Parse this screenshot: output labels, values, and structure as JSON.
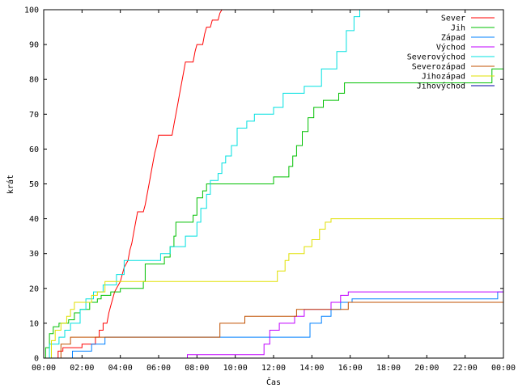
{
  "chart_data": {
    "type": "line",
    "xlabel": "Čas",
    "ylabel": "krát",
    "xlim": [
      0,
      24
    ],
    "ylim": [
      0,
      100
    ],
    "xticks": [
      {
        "v": 0,
        "label": "00:00"
      },
      {
        "v": 2,
        "label": "02:00"
      },
      {
        "v": 4,
        "label": "04:00"
      },
      {
        "v": 6,
        "label": "06:00"
      },
      {
        "v": 8,
        "label": "08:00"
      },
      {
        "v": 10,
        "label": "10:00"
      },
      {
        "v": 12,
        "label": "12:00"
      },
      {
        "v": 14,
        "label": "14:00"
      },
      {
        "v": 16,
        "label": "16:00"
      },
      {
        "v": 18,
        "label": "18:00"
      },
      {
        "v": 20,
        "label": "20:00"
      },
      {
        "v": 22,
        "label": "22:00"
      },
      {
        "v": 24,
        "label": "00:00"
      }
    ],
    "yticks": [
      {
        "v": 0,
        "label": "0"
      },
      {
        "v": 10,
        "label": "10"
      },
      {
        "v": 20,
        "label": "20"
      },
      {
        "v": 30,
        "label": "30"
      },
      {
        "v": 40,
        "label": "40"
      },
      {
        "v": 50,
        "label": "50"
      },
      {
        "v": 60,
        "label": "60"
      },
      {
        "v": 70,
        "label": "70"
      },
      {
        "v": 80,
        "label": "80"
      },
      {
        "v": 90,
        "label": "90"
      },
      {
        "v": 100,
        "label": "100"
      }
    ],
    "grid": false,
    "legend_position": "top-right",
    "series": [
      {
        "name": "Sever",
        "color": "#ff0000",
        "points": [
          [
            0,
            0
          ],
          [
            0.75,
            0
          ],
          [
            0.75,
            2
          ],
          [
            1.0,
            2
          ],
          [
            1.0,
            3
          ],
          [
            2.0,
            3
          ],
          [
            2.0,
            4
          ],
          [
            2.7,
            4
          ],
          [
            2.7,
            6
          ],
          [
            2.9,
            6
          ],
          [
            2.9,
            8
          ],
          [
            3.1,
            8
          ],
          [
            3.1,
            10
          ],
          [
            3.3,
            10
          ],
          [
            3.4,
            13
          ],
          [
            3.5,
            15
          ],
          [
            3.6,
            17
          ],
          [
            3.7,
            19
          ],
          [
            3.8,
            20
          ],
          [
            3.9,
            21
          ],
          [
            4.0,
            22
          ],
          [
            4.1,
            24
          ],
          [
            4.2,
            26
          ],
          [
            4.4,
            28
          ],
          [
            4.5,
            31
          ],
          [
            4.6,
            33
          ],
          [
            4.7,
            36
          ],
          [
            4.8,
            39
          ],
          [
            4.9,
            42
          ],
          [
            5.2,
            42
          ],
          [
            5.3,
            44
          ],
          [
            5.4,
            47
          ],
          [
            5.5,
            50
          ],
          [
            5.6,
            53
          ],
          [
            5.7,
            56
          ],
          [
            5.8,
            59
          ],
          [
            5.9,
            61
          ],
          [
            6.0,
            64
          ],
          [
            6.7,
            64
          ],
          [
            6.8,
            67
          ],
          [
            6.9,
            70
          ],
          [
            7.0,
            73
          ],
          [
            7.1,
            76
          ],
          [
            7.2,
            79
          ],
          [
            7.3,
            82
          ],
          [
            7.4,
            85
          ],
          [
            7.8,
            85
          ],
          [
            7.9,
            88
          ],
          [
            8.0,
            90
          ],
          [
            8.3,
            90
          ],
          [
            8.4,
            93
          ],
          [
            8.5,
            95
          ],
          [
            8.7,
            95
          ],
          [
            8.8,
            97
          ],
          [
            9.1,
            97
          ],
          [
            9.2,
            99
          ],
          [
            9.3,
            100
          ]
        ]
      },
      {
        "name": "Jih",
        "color": "#00c000",
        "points": [
          [
            0,
            0
          ],
          [
            0.1,
            0
          ],
          [
            0.1,
            3
          ],
          [
            0.3,
            3
          ],
          [
            0.3,
            7
          ],
          [
            0.5,
            7
          ],
          [
            0.5,
            9
          ],
          [
            0.8,
            9
          ],
          [
            0.8,
            10
          ],
          [
            1.3,
            10
          ],
          [
            1.3,
            11
          ],
          [
            1.6,
            11
          ],
          [
            1.6,
            13
          ],
          [
            1.9,
            13
          ],
          [
            1.9,
            14
          ],
          [
            2.4,
            14
          ],
          [
            2.4,
            16
          ],
          [
            2.8,
            16
          ],
          [
            2.8,
            17
          ],
          [
            3.0,
            17
          ],
          [
            3.0,
            18
          ],
          [
            3.5,
            18
          ],
          [
            3.5,
            19
          ],
          [
            4.0,
            19
          ],
          [
            4.0,
            20
          ],
          [
            5.2,
            20
          ],
          [
            5.2,
            22
          ],
          [
            5.3,
            22
          ],
          [
            5.3,
            27
          ],
          [
            6.3,
            27
          ],
          [
            6.3,
            29
          ],
          [
            6.6,
            29
          ],
          [
            6.6,
            32
          ],
          [
            6.8,
            32
          ],
          [
            6.8,
            35
          ],
          [
            6.9,
            35
          ],
          [
            6.9,
            39
          ],
          [
            7.8,
            39
          ],
          [
            7.8,
            41
          ],
          [
            8.0,
            41
          ],
          [
            8.0,
            46
          ],
          [
            8.3,
            46
          ],
          [
            8.3,
            48
          ],
          [
            8.5,
            48
          ],
          [
            8.5,
            50
          ],
          [
            12.0,
            50
          ],
          [
            12.0,
            52
          ],
          [
            12.8,
            52
          ],
          [
            12.8,
            55
          ],
          [
            13.0,
            55
          ],
          [
            13.0,
            58
          ],
          [
            13.2,
            58
          ],
          [
            13.2,
            61
          ],
          [
            13.5,
            61
          ],
          [
            13.5,
            65
          ],
          [
            13.8,
            65
          ],
          [
            13.8,
            69
          ],
          [
            14.1,
            69
          ],
          [
            14.1,
            72
          ],
          [
            14.6,
            72
          ],
          [
            14.6,
            74
          ],
          [
            15.4,
            74
          ],
          [
            15.4,
            76
          ],
          [
            15.7,
            76
          ],
          [
            15.7,
            79
          ],
          [
            23.4,
            79
          ],
          [
            23.4,
            83
          ],
          [
            24,
            83
          ]
        ]
      },
      {
        "name": "Západ",
        "color": "#0080ff",
        "points": [
          [
            0,
            0
          ],
          [
            1.5,
            0
          ],
          [
            1.5,
            2
          ],
          [
            2.5,
            2
          ],
          [
            2.5,
            4
          ],
          [
            3.2,
            4
          ],
          [
            3.2,
            6
          ],
          [
            13.9,
            6
          ],
          [
            13.9,
            10
          ],
          [
            14.5,
            10
          ],
          [
            14.5,
            12
          ],
          [
            15.0,
            12
          ],
          [
            15.0,
            14
          ],
          [
            15.5,
            14
          ],
          [
            15.5,
            16
          ],
          [
            16.1,
            16
          ],
          [
            16.1,
            17
          ],
          [
            23.7,
            17
          ],
          [
            23.7,
            19
          ],
          [
            24,
            19
          ]
        ]
      },
      {
        "name": "Východ",
        "color": "#c000ff",
        "points": [
          [
            0,
            0
          ],
          [
            7.5,
            0
          ],
          [
            7.5,
            1
          ],
          [
            11.5,
            1
          ],
          [
            11.5,
            4
          ],
          [
            11.8,
            4
          ],
          [
            11.8,
            8
          ],
          [
            12.3,
            8
          ],
          [
            12.3,
            10
          ],
          [
            13.1,
            10
          ],
          [
            13.1,
            12
          ],
          [
            13.6,
            12
          ],
          [
            13.6,
            14
          ],
          [
            15.0,
            14
          ],
          [
            15.0,
            16
          ],
          [
            15.5,
            16
          ],
          [
            15.5,
            18
          ],
          [
            15.9,
            18
          ],
          [
            15.9,
            19
          ],
          [
            24,
            19
          ]
        ]
      },
      {
        "name": "Severovýchod",
        "color": "#00e0e0",
        "points": [
          [
            0,
            0
          ],
          [
            0.3,
            0
          ],
          [
            0.3,
            4
          ],
          [
            0.8,
            4
          ],
          [
            0.8,
            6
          ],
          [
            1.1,
            6
          ],
          [
            1.1,
            8
          ],
          [
            1.4,
            8
          ],
          [
            1.4,
            10
          ],
          [
            1.9,
            10
          ],
          [
            1.9,
            14
          ],
          [
            2.2,
            14
          ],
          [
            2.2,
            17
          ],
          [
            2.6,
            17
          ],
          [
            2.6,
            19
          ],
          [
            3.1,
            19
          ],
          [
            3.1,
            21
          ],
          [
            3.8,
            21
          ],
          [
            3.8,
            24
          ],
          [
            4.2,
            24
          ],
          [
            4.2,
            28
          ],
          [
            6.1,
            28
          ],
          [
            6.1,
            30
          ],
          [
            6.6,
            30
          ],
          [
            6.6,
            32
          ],
          [
            7.4,
            32
          ],
          [
            7.4,
            35
          ],
          [
            8.0,
            35
          ],
          [
            8.0,
            39
          ],
          [
            8.2,
            39
          ],
          [
            8.2,
            43
          ],
          [
            8.5,
            43
          ],
          [
            8.5,
            47
          ],
          [
            8.7,
            47
          ],
          [
            8.7,
            51
          ],
          [
            9.1,
            51
          ],
          [
            9.1,
            53
          ],
          [
            9.3,
            53
          ],
          [
            9.3,
            56
          ],
          [
            9.5,
            56
          ],
          [
            9.5,
            58
          ],
          [
            9.8,
            58
          ],
          [
            9.8,
            61
          ],
          [
            10.1,
            61
          ],
          [
            10.1,
            66
          ],
          [
            10.6,
            66
          ],
          [
            10.6,
            68
          ],
          [
            11.0,
            68
          ],
          [
            11.0,
            70
          ],
          [
            12.0,
            70
          ],
          [
            12.0,
            72
          ],
          [
            12.5,
            72
          ],
          [
            12.5,
            76
          ],
          [
            13.6,
            76
          ],
          [
            13.6,
            78
          ],
          [
            14.5,
            78
          ],
          [
            14.5,
            83
          ],
          [
            15.3,
            83
          ],
          [
            15.3,
            88
          ],
          [
            15.8,
            88
          ],
          [
            15.8,
            94
          ],
          [
            16.2,
            94
          ],
          [
            16.2,
            98
          ],
          [
            16.5,
            98
          ],
          [
            16.5,
            100
          ]
        ]
      },
      {
        "name": "Severozápad",
        "color": "#c05000",
        "points": [
          [
            0,
            0
          ],
          [
            0.9,
            0
          ],
          [
            0.9,
            4
          ],
          [
            1.4,
            4
          ],
          [
            1.4,
            6
          ],
          [
            9.2,
            6
          ],
          [
            9.2,
            10
          ],
          [
            10.5,
            10
          ],
          [
            10.5,
            12
          ],
          [
            13.2,
            12
          ],
          [
            13.2,
            14
          ],
          [
            15.9,
            14
          ],
          [
            15.9,
            16
          ],
          [
            24,
            16
          ]
        ]
      },
      {
        "name": "Jihozápad",
        "color": "#e0e000",
        "points": [
          [
            0,
            0
          ],
          [
            0.4,
            0
          ],
          [
            0.4,
            5
          ],
          [
            0.6,
            5
          ],
          [
            0.6,
            8
          ],
          [
            0.9,
            8
          ],
          [
            0.9,
            10
          ],
          [
            1.2,
            10
          ],
          [
            1.2,
            12
          ],
          [
            1.4,
            12
          ],
          [
            1.4,
            14
          ],
          [
            1.6,
            14
          ],
          [
            1.6,
            16
          ],
          [
            2.5,
            16
          ],
          [
            2.5,
            18
          ],
          [
            2.8,
            18
          ],
          [
            2.8,
            19
          ],
          [
            3.2,
            19
          ],
          [
            3.2,
            22
          ],
          [
            12.2,
            22
          ],
          [
            12.2,
            25
          ],
          [
            12.6,
            25
          ],
          [
            12.6,
            28
          ],
          [
            12.8,
            28
          ],
          [
            12.8,
            30
          ],
          [
            13.6,
            30
          ],
          [
            13.6,
            32
          ],
          [
            14.0,
            32
          ],
          [
            14.0,
            34
          ],
          [
            14.4,
            34
          ],
          [
            14.4,
            37
          ],
          [
            14.7,
            37
          ],
          [
            14.7,
            39
          ],
          [
            15.0,
            39
          ],
          [
            15.0,
            40
          ],
          [
            24,
            40
          ]
        ]
      },
      {
        "name": "Jihovýchod",
        "color": "#0000a0",
        "points": []
      }
    ]
  }
}
